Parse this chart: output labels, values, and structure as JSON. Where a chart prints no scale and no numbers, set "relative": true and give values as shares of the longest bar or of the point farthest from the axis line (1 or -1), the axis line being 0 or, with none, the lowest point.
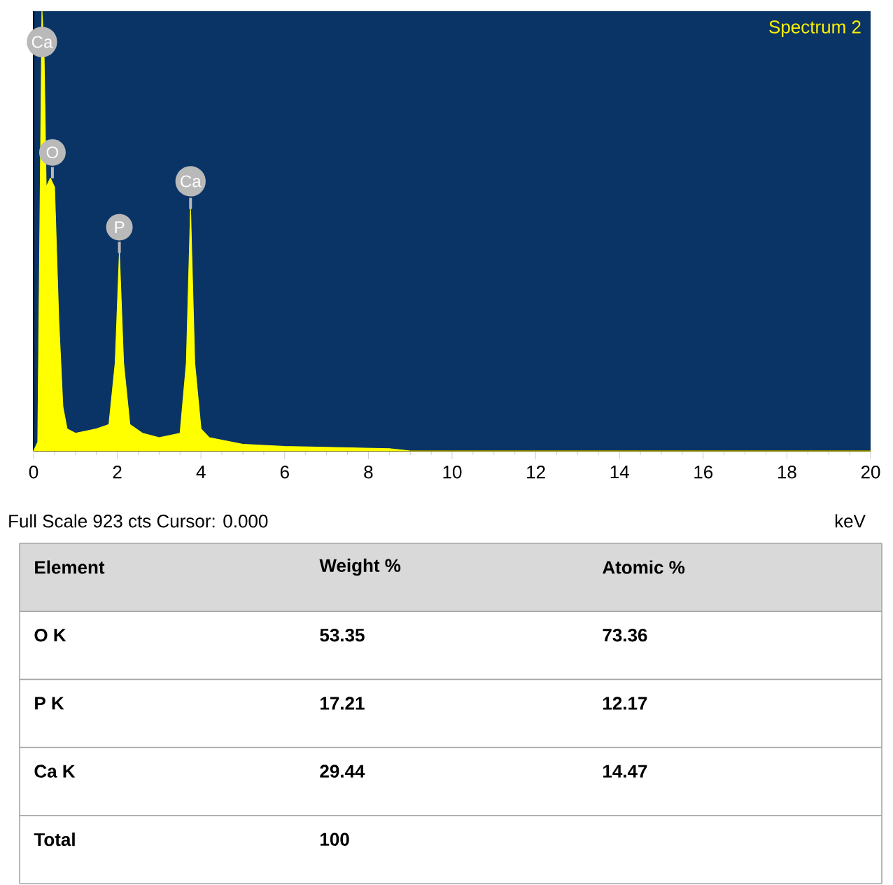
{
  "chart_data": [
    {
      "type": "area",
      "title": "Spectrum 2",
      "xlabel": "keV",
      "relative": true,
      "color": "#ffff00",
      "x": [
        0,
        0.1,
        0.2,
        0.25,
        0.3,
        0.4,
        0.5,
        0.6,
        0.7,
        0.8,
        1.0,
        1.5,
        1.8,
        1.95,
        2.05,
        2.15,
        2.3,
        2.6,
        3.0,
        3.5,
        3.65,
        3.75,
        3.85,
        4.0,
        4.2,
        5.0,
        6.0,
        7.0,
        8.5,
        9.0,
        20
      ],
      "values": [
        0,
        0.02,
        1.0,
        0.9,
        0.6,
        0.62,
        0.6,
        0.3,
        0.1,
        0.05,
        0.04,
        0.05,
        0.06,
        0.2,
        0.45,
        0.2,
        0.06,
        0.04,
        0.03,
        0.04,
        0.2,
        0.55,
        0.2,
        0.05,
        0.03,
        0.015,
        0.01,
        0.008,
        0.005,
        0,
        0
      ],
      "xlim": [
        0,
        20
      ],
      "xticks": [
        0,
        2,
        4,
        6,
        8,
        10,
        12,
        14,
        16,
        18,
        20
      ],
      "annotations": [
        {
          "text": "Ca",
          "x": 0.2,
          "y": 1.0
        },
        {
          "text": "O",
          "x": 0.45,
          "y": 0.62
        },
        {
          "text": "P",
          "x": 2.05,
          "y": 0.45
        },
        {
          "text": "Ca",
          "x": 3.75,
          "y": 0.55
        },
        "Full Scale 923 cts Cursor: 0.000"
      ]
    },
    {
      "type": "other",
      "xlabel": "Element",
      "categories": [
        "O K",
        "P K",
        "Ca K",
        "Total"
      ],
      "series": [
        {
          "name": "Weight %",
          "values": [
            53.35,
            17.21,
            29.44,
            100
          ]
        },
        {
          "name": "Atomic %",
          "values": [
            73.36,
            12.17,
            14.47,
            null
          ]
        }
      ],
      "data_labels": true
    }
  ]
}
